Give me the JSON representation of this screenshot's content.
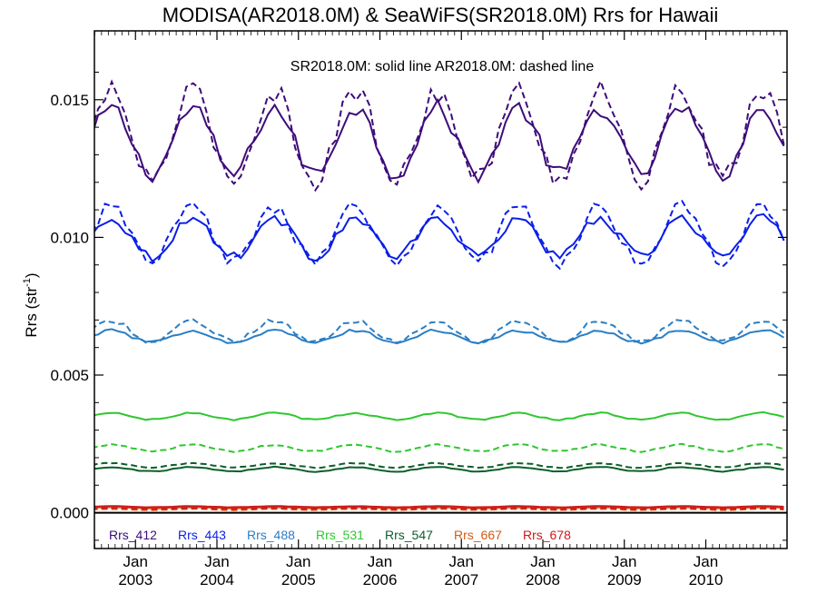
{
  "chart_data": {
    "type": "line",
    "title": "MODISA(AR2018.0M) & SeaWiFS(SR2018.0M)  Rrs for Hawaii",
    "subtitle": "SR2018.0M: solid line   AR2018.0M: dashed line",
    "ylabel": "Rrs (str",
    "ylabel_sup": "-1",
    "ylabel_end": ")",
    "xlabel": "",
    "xlim": [
      "2002-07-01",
      "2010-12-31"
    ],
    "ylim": [
      -0.0013,
      0.0175
    ],
    "y_ticks": [
      0.0,
      0.005,
      0.01,
      0.015
    ],
    "y_tick_labels": [
      "0.000",
      "0.005",
      "0.010",
      "0.015"
    ],
    "x_ticks": [
      "2003-01-01",
      "2004-01-01",
      "2005-01-01",
      "2006-01-01",
      "2007-01-01",
      "2008-01-01",
      "2009-01-01",
      "2010-01-01"
    ],
    "x_tick_month": "Jan",
    "x_tick_years": [
      "2003",
      "2004",
      "2005",
      "2006",
      "2007",
      "2008",
      "2009",
      "2010"
    ],
    "zero_line": 0,
    "grid": false,
    "legend_position": "bottom",
    "series": [
      {
        "name": "Rrs_412",
        "color": "#3d0c7a",
        "solid_base": 0.0135,
        "solid_amp": 0.0012,
        "solid_phase": 0.2,
        "dashed_base": 0.0137,
        "dashed_amp": 0.0016,
        "dashed_phase": 0.2
      },
      {
        "name": "Rrs_443",
        "color": "#0a1ee8",
        "solid_base": 0.01,
        "solid_amp": 0.0007,
        "solid_phase": 0.2,
        "dashed_base": 0.0101,
        "dashed_amp": 0.001,
        "dashed_phase": 0.2
      },
      {
        "name": "Rrs_488",
        "color": "#2a7ec4",
        "solid_base": 0.0064,
        "solid_amp": 0.00022,
        "solid_phase": 0.2,
        "dashed_base": 0.0066,
        "dashed_amp": 0.00038,
        "dashed_phase": 0.2
      },
      {
        "name": "Rrs_531",
        "color": "#2ec72e",
        "solid_base": 0.0035,
        "solid_amp": 0.00012,
        "solid_phase": 0.2,
        "dashed_base": 0.00235,
        "dashed_amp": 0.00012,
        "dashed_phase": 0.2
      },
      {
        "name": "Rrs_547",
        "color": "#0c5e2a",
        "solid_base": 0.00158,
        "solid_amp": 8e-05,
        "solid_phase": 0.2,
        "dashed_base": 0.00172,
        "dashed_amp": 8e-05,
        "dashed_phase": 0.2
      },
      {
        "name": "Rrs_667",
        "color": "#d65a14",
        "solid_base": 0.00018,
        "solid_amp": 2e-05,
        "solid_phase": 0.2,
        "dashed_base": 0.00012,
        "dashed_amp": 2e-05,
        "dashed_phase": 0.2
      },
      {
        "name": "Rrs_678",
        "color": "#cc1a1a",
        "solid_base": 0.00022,
        "solid_amp": 2e-05,
        "solid_phase": 0.2,
        "dashed_base": 0.00015,
        "dashed_amp": 2e-05,
        "dashed_phase": 0.2
      }
    ]
  }
}
